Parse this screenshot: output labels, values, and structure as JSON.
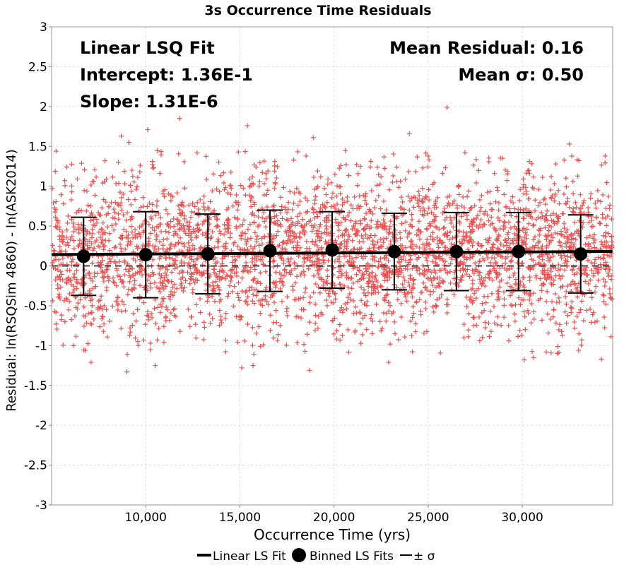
{
  "chart_data": {
    "type": "scatter",
    "title": "3s Occurrence Time Residuals",
    "xlabel": "Occurrence Time (yrs)",
    "ylabel": "Residual: ln(RSQSim 4860) - ln(ASK2014)",
    "xlim": [
      5000,
      34800
    ],
    "ylim": [
      -3,
      3
    ],
    "x_ticks": [
      10000,
      15000,
      20000,
      25000,
      30000
    ],
    "x_tick_labels": [
      "10,000",
      "15,000",
      "20,000",
      "25,000",
      "30,000"
    ],
    "y_ticks": [
      3,
      2.5,
      2,
      1.5,
      1,
      0.5,
      0,
      -0.5,
      -1,
      -1.5,
      -2,
      -2.5,
      -3
    ],
    "y_tick_labels": [
      "3",
      "2.5",
      "2",
      "1.5",
      "1",
      "0.5",
      "0",
      "-0.5",
      "-1",
      "-1.5",
      "-2",
      "-2.5",
      "-3"
    ],
    "grid": true,
    "colors": {
      "scatter": "#f05050",
      "fit": "#000000",
      "grid": "#dddddd",
      "zero_line": "#444444"
    },
    "annotations": {
      "fit_title": "Linear LSQ Fit",
      "intercept": "Intercept: 1.36E-1",
      "slope": "Slope: 1.31E-6",
      "mean_residual": "Mean Residual: 0.16",
      "mean_sigma": "Mean σ: 0.50"
    },
    "linear_fit": {
      "name": "Linear LS Fit",
      "intercept": 0.136,
      "slope": 1.31e-06
    },
    "binned_fits": {
      "name": "Binned LS Fits",
      "error_name": "± σ",
      "x": [
        6700,
        10000,
        13300,
        16600,
        19900,
        23200,
        26500,
        29800,
        33100
      ],
      "y": [
        0.12,
        0.14,
        0.15,
        0.19,
        0.2,
        0.18,
        0.18,
        0.18,
        0.15
      ],
      "sigma": [
        0.49,
        0.54,
        0.5,
        0.51,
        0.48,
        0.48,
        0.49,
        0.49,
        0.49
      ]
    },
    "scatter_points": [
      [
        8700,
        1.63
      ],
      [
        9100,
        1.55
      ],
      [
        10100,
        1.71
      ],
      [
        11800,
        1.85
      ],
      [
        15400,
        1.76
      ],
      [
        18900,
        1.61
      ],
      [
        24000,
        1.66
      ],
      [
        26000,
        1.99
      ],
      [
        32500,
        1.53
      ],
      [
        34400,
        1.38
      ],
      [
        9000,
        -1.33
      ],
      [
        10500,
        -1.25
      ],
      [
        15100,
        -1.28
      ],
      [
        15700,
        -1.25
      ],
      [
        18700,
        -1.31
      ],
      [
        22900,
        -1.21
      ],
      [
        30100,
        -1.18
      ],
      [
        34200,
        -1.17
      ],
      [
        7100,
        -1.21
      ],
      [
        30600,
        -1.15
      ]
    ],
    "legend": {
      "placement": "bottom",
      "items": [
        {
          "label": "Linear LS Fit",
          "marker": "line"
        },
        {
          "label": "Binned LS Fits",
          "marker": "circle"
        },
        {
          "label": "± σ",
          "marker": "thin-line"
        }
      ]
    }
  }
}
